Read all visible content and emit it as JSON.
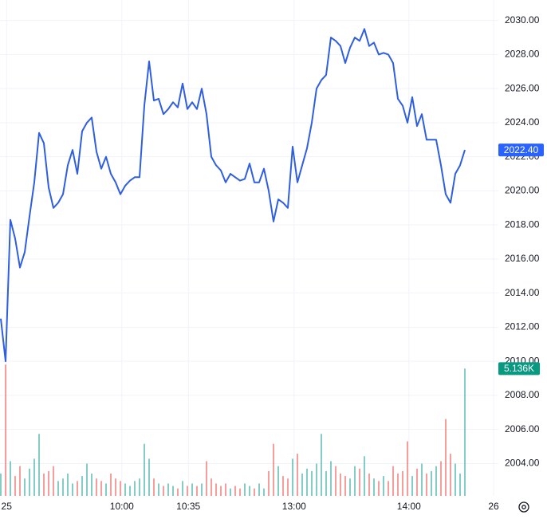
{
  "chart_data": {
    "type": "line",
    "grid": true,
    "xlim": [
      0,
      97
    ],
    "ylim": [
      2002.1,
      2031.2
    ],
    "vlim": [
      0,
      5500
    ],
    "xticks": [
      {
        "value": 1.2,
        "label": "25"
      },
      {
        "value": 25.3,
        "label": "10:00"
      },
      {
        "value": 39.2,
        "label": "10:35"
      },
      {
        "value": 61.3,
        "label": "13:00"
      },
      {
        "value": 85.3,
        "label": "14:00"
      },
      {
        "value": 103,
        "label": "26"
      }
    ],
    "yticks": [
      {
        "value": 2004,
        "label": "2004.00"
      },
      {
        "value": 2006,
        "label": "2006.00"
      },
      {
        "value": 2008,
        "label": "2008.00"
      },
      {
        "value": 2010,
        "label": "2010.00"
      },
      {
        "value": 2012,
        "label": "2012.00"
      },
      {
        "value": 2014,
        "label": "2014.00"
      },
      {
        "value": 2016,
        "label": "2016.00"
      },
      {
        "value": 2018,
        "label": "2018.00"
      },
      {
        "value": 2020,
        "label": "2020.00"
      },
      {
        "value": 2022,
        "label": "2022.00"
      },
      {
        "value": 2024,
        "label": "2024.00"
      },
      {
        "value": 2026,
        "label": "2026.00"
      },
      {
        "value": 2028,
        "label": "2028.00"
      },
      {
        "value": 2030,
        "label": "2030.00"
      }
    ],
    "price": {
      "color": "#2f5fe0",
      "values": [
        2012.5,
        2010.0,
        2018.3,
        2017.2,
        2015.5,
        2016.4,
        2018.5,
        2020.5,
        2023.4,
        2022.8,
        2020.2,
        2019.0,
        2019.3,
        2019.8,
        2021.5,
        2022.4,
        2021.0,
        2023.5,
        2024.0,
        2024.3,
        2022.3,
        2021.3,
        2022.0,
        2021.0,
        2020.5,
        2019.8,
        2020.3,
        2020.6,
        2020.8,
        2020.8,
        2025.0,
        2027.6,
        2025.3,
        2025.4,
        2024.5,
        2024.8,
        2025.2,
        2024.9,
        2026.3,
        2024.8,
        2025.2,
        2024.8,
        2026.0,
        2024.5,
        2022.0,
        2021.5,
        2021.2,
        2020.5,
        2021.0,
        2020.8,
        2020.6,
        2020.7,
        2021.6,
        2020.5,
        2020.5,
        2021.3,
        2020.0,
        2018.2,
        2019.5,
        2019.3,
        2019.0,
        2022.6,
        2020.5,
        2021.5,
        2022.5,
        2024.0,
        2026.0,
        2026.5,
        2026.8,
        2029.0,
        2028.8,
        2028.5,
        2027.5,
        2028.4,
        2029.0,
        2028.8,
        2029.5,
        2028.5,
        2028.7,
        2028.0,
        2028.1,
        2028.0,
        2027.5,
        2025.4,
        2025.0,
        2024.0,
        2025.5,
        2023.8,
        2024.5,
        2023.0,
        2023.0,
        2023.0,
        2021.5,
        2019.8,
        2019.3,
        2021.0,
        2021.5,
        2022.4
      ]
    },
    "volume": {
      "up_color": "#26a69a",
      "down_color": "#ef5350",
      "values": [
        900,
        5300,
        1400,
        800,
        1200,
        700,
        1100,
        1500,
        2500,
        900,
        1000,
        1200,
        600,
        700,
        900,
        500,
        600,
        800,
        1300,
        900,
        700,
        600,
        500,
        900,
        700,
        600,
        500,
        400,
        600,
        700,
        2100,
        1500,
        700,
        500,
        400,
        500,
        400,
        300,
        600,
        400,
        500,
        400,
        500,
        1400,
        700,
        500,
        400,
        500,
        300,
        400,
        300,
        500,
        400,
        300,
        500,
        300,
        1000,
        2100,
        1200,
        800,
        700,
        1500,
        1700,
        900,
        1100,
        1000,
        1300,
        2500,
        1000,
        1400,
        1200,
        900,
        800,
        700,
        1200,
        1100,
        1600,
        900,
        700,
        600,
        800,
        600,
        1200,
        900,
        1000,
        2200,
        800,
        1100,
        1300,
        900,
        1000,
        1200,
        1400,
        3100,
        1700,
        1300,
        900,
        5136
      ]
    },
    "current_price": {
      "value": 2022.4,
      "label": "2022.40",
      "color": "#2962ff"
    },
    "current_volume": {
      "value": 5136,
      "label": "5.136K",
      "color": "#089981"
    }
  }
}
